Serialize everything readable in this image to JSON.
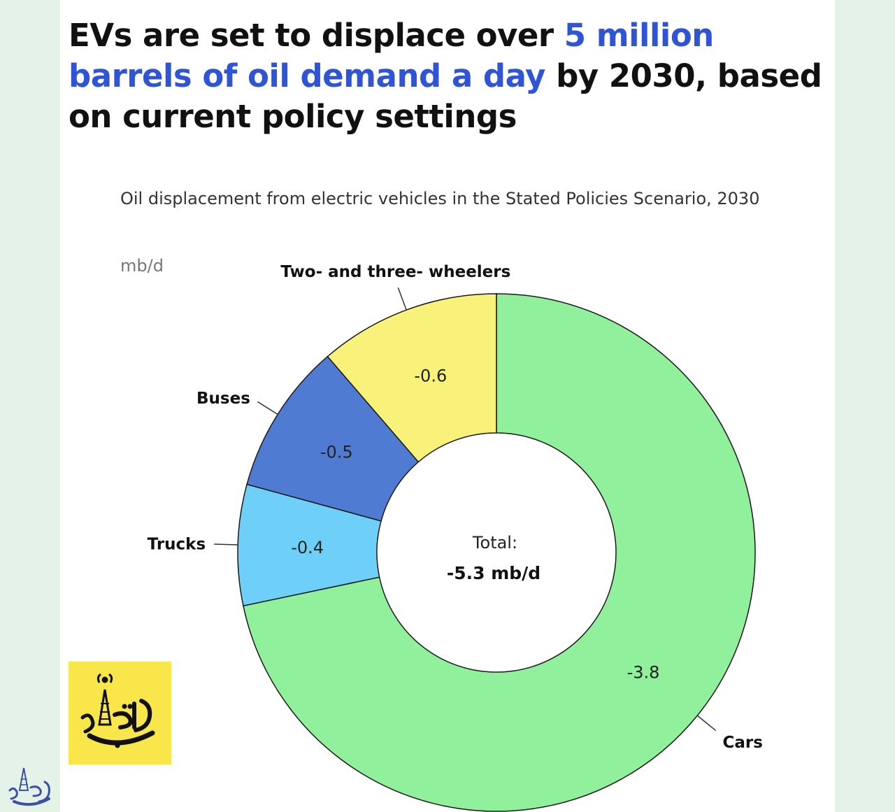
{
  "headline": {
    "part1": "EVs are set to displace over ",
    "highlight": "5 million barrels of oil demand a day",
    "part2": " by 2030, based on current policy settings"
  },
  "colors": {
    "highlight": "#2f55d4",
    "cars": "#90f09c",
    "trucks": "#6ed0f8",
    "buses": "#4f7cd2",
    "two_three_wheelers": "#f9f27a",
    "logo_background": "#f9e64a"
  },
  "chart_data": {
    "type": "pie",
    "variant": "donut",
    "title": "Oil displacement from electric vehicles in the Stated Policies Scenario, 2030",
    "unit": "mb/d",
    "slices": [
      {
        "name": "Cars",
        "value": -3.8,
        "label": "-3.8"
      },
      {
        "name": "Trucks",
        "value": -0.4,
        "label": "-0.4"
      },
      {
        "name": "Buses",
        "value": -0.5,
        "label": "-0.5"
      },
      {
        "name": "Two- and three- wheelers",
        "value": -0.6,
        "label": "-0.6"
      }
    ],
    "center": {
      "title": "Total:",
      "value": "-5.3 mb/d"
    }
  },
  "logos": {
    "main": "oil-derrick-logo",
    "corner": "oil-derrick-logo-small"
  }
}
